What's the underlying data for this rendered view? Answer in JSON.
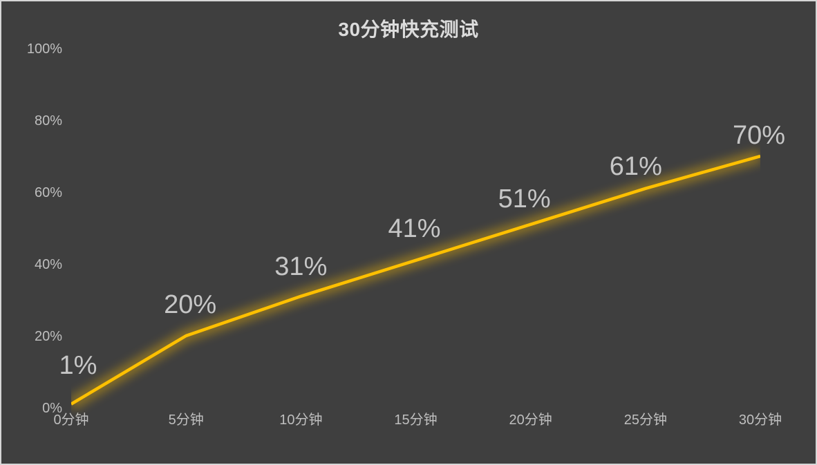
{
  "window": {
    "background": "#3f3f3f",
    "border_color": "#d6d6d6"
  },
  "chart_data": {
    "type": "line",
    "title": "30分钟快充测试",
    "xlabel": "",
    "ylabel": "",
    "categories": [
      "0分钟",
      "5分钟",
      "10分钟",
      "15分钟",
      "20分钟",
      "25分钟",
      "30分钟"
    ],
    "values": [
      1,
      20,
      31,
      41,
      51,
      61,
      70
    ],
    "point_labels": [
      "1%",
      "20%",
      "31%",
      "41%",
      "51%",
      "61%",
      "70%"
    ],
    "y_tick_labels": [
      "100%",
      "80%",
      "60%",
      "40%",
      "20%",
      "0%"
    ],
    "y_tick_values": [
      100,
      80,
      60,
      40,
      20,
      0
    ],
    "ylim": [
      0,
      100
    ],
    "grid": false,
    "legend": false,
    "line_color": "#ffc000",
    "glow_color": "#ffc000",
    "label_color": "#c6c6c6",
    "axis_label_color": "#bfbfbf",
    "title_color": "#dcdcdc",
    "background_color": "#3f3f3f"
  }
}
